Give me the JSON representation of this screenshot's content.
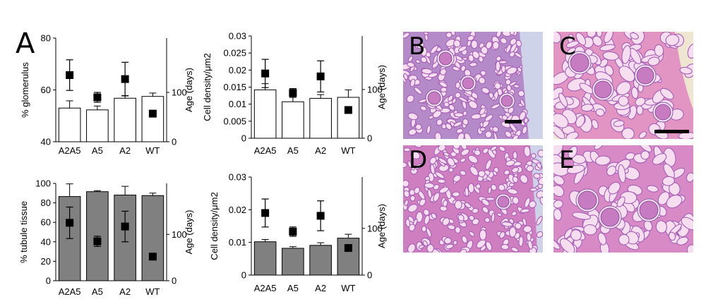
{
  "panel_label": "A",
  "chart_data": [
    {
      "type": "bar",
      "categories": [
        "A2A5",
        "A5",
        "A2",
        "WT"
      ],
      "bar_fill": "#ffffff",
      "left_axis": {
        "ylabel": "% glomerulus",
        "ylim": [
          40,
          80
        ],
        "ticks": [
          "40",
          "60",
          "80"
        ],
        "tick_values": [
          40,
          60,
          80
        ]
      },
      "right_axis": {
        "ylabel": "Age (days)",
        "ylim": [
          0,
          210
        ],
        "ticks": [
          "0",
          "100"
        ],
        "tick_values": [
          0,
          100
        ]
      },
      "series": [
        {
          "axis": "left",
          "kind": "bar",
          "values": [
            53,
            52.3,
            56.8,
            57.5
          ],
          "errors": [
            2.8,
            1.5,
            1.0,
            1.3
          ]
        },
        {
          "axis": "right",
          "kind": "marker",
          "values": [
            135,
            90,
            127,
            57
          ],
          "errors": [
            31,
            10,
            34,
            0
          ]
        }
      ]
    },
    {
      "type": "bar",
      "categories": [
        "A2A5",
        "A5",
        "A2",
        "WT"
      ],
      "bar_fill": "#ffffff",
      "left_axis": {
        "ylabel": "Cell density/μm2",
        "ylim": [
          0,
          0.03
        ],
        "ticks": [
          "0",
          "0.005",
          "0.01",
          "0.015",
          "0.02",
          "0.025",
          "0.03"
        ],
        "tick_values": [
          0,
          0.005,
          0.01,
          0.015,
          0.02,
          0.025,
          0.03
        ]
      },
      "right_axis": {
        "ylabel": "Age (days)",
        "ylim": [
          0,
          210
        ],
        "ticks": [
          "0",
          "100"
        ],
        "tick_values": [
          0,
          100
        ]
      },
      "series": [
        {
          "axis": "left",
          "kind": "bar",
          "values": [
            0.0142,
            0.0107,
            0.0117,
            0.012
          ],
          "errors": [
            0.0018,
            0.002,
            0.0011,
            0.0022
          ]
        },
        {
          "axis": "right",
          "kind": "marker",
          "values": [
            133,
            93,
            127,
            58
          ],
          "errors": [
            29,
            9,
            32,
            0
          ]
        }
      ]
    },
    {
      "type": "bar",
      "categories": [
        "A2A5",
        "A5",
        "A2",
        "WT"
      ],
      "bar_fill": "#808080",
      "left_axis": {
        "ylabel": "% tubule tissue",
        "ylim": [
          0,
          100
        ],
        "ticks": [
          "0",
          "20",
          "40",
          "60",
          "80",
          "100"
        ],
        "tick_values": [
          0,
          20,
          40,
          60,
          80,
          100
        ]
      },
      "right_axis": {
        "ylabel": "Age (days)",
        "ylim": [
          0,
          210
        ],
        "ticks": [
          "0",
          "100"
        ],
        "tick_values": [
          0,
          100
        ]
      },
      "series": [
        {
          "axis": "left",
          "kind": "bar",
          "values": [
            86.5,
            91.5,
            88,
            87.5
          ],
          "errors": [
            13,
            1,
            9,
            2.5
          ]
        },
        {
          "axis": "right",
          "kind": "marker",
          "values": [
            125,
            85,
            117,
            52
          ],
          "errors": [
            34,
            11,
            33,
            0
          ]
        }
      ]
    },
    {
      "type": "bar",
      "categories": [
        "A2A5",
        "A5",
        "A2",
        "WT"
      ],
      "bar_fill": "#808080",
      "left_axis": {
        "ylabel": "Cell density/μm2",
        "ylim": [
          0,
          0.03
        ],
        "ticks": [
          "0",
          "0.01",
          "0.02",
          "0.03"
        ],
        "tick_values": [
          0,
          0.01,
          0.02,
          0.03
        ]
      },
      "right_axis": {
        "ylabel": "Age (days)",
        "ylim": [
          0,
          210
        ],
        "ticks": [
          "0",
          "100"
        ],
        "tick_values": [
          0,
          100
        ]
      },
      "series": [
        {
          "axis": "left",
          "kind": "bar",
          "values": [
            0.0102,
            0.0082,
            0.0091,
            0.0113
          ],
          "errors": [
            0.0007,
            0.0005,
            0.0008,
            0.0012
          ]
        },
        {
          "axis": "right",
          "kind": "marker",
          "values": [
            133,
            93,
            127,
            58
          ],
          "errors": [
            30,
            10,
            32,
            0
          ]
        }
      ]
    }
  ],
  "micrographs": [
    {
      "letter": "B",
      "scale_bar": true
    },
    {
      "letter": "C",
      "scale_bar": true
    },
    {
      "letter": "D",
      "scale_bar": false
    },
    {
      "letter": "E",
      "scale_bar": false
    }
  ],
  "colors": {
    "he_pink": "#d77fbf",
    "he_purple": "#8e5aa8",
    "slide_blue": "#cfd3ea",
    "slide_cream": "#efe6d2"
  }
}
